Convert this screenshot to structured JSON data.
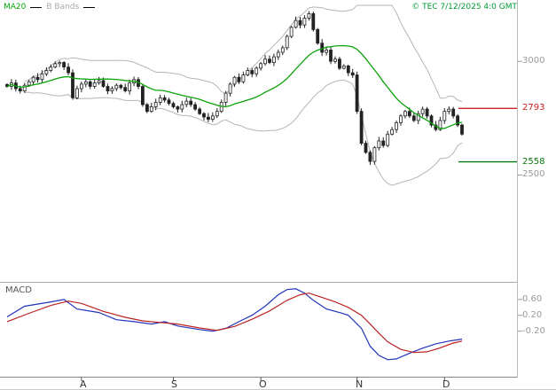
{
  "header": {
    "ma20_label": "MA20",
    "bbands_label": "B Bands",
    "copyright": "© TEC 7/12/2025 4:0 GMT"
  },
  "price_axis": {
    "ticks": [
      {
        "label": "3000",
        "value": 3000
      },
      {
        "label": "2500",
        "value": 2500
      }
    ],
    "levels": [
      {
        "name": "resistance",
        "label": "2793",
        "value": 2793
      },
      {
        "name": "support",
        "label": "2558",
        "value": 2558
      }
    ]
  },
  "macd_panel": {
    "label": "MACD",
    "ticks": [
      {
        "label": "0.60",
        "value": 0.6
      },
      {
        "label": "0.20",
        "value": 0.2
      },
      {
        "label": "-0.20",
        "value": -0.2
      }
    ]
  },
  "x_axis": {
    "months": [
      {
        "label": "A",
        "day": 17
      },
      {
        "label": "S",
        "day": 38
      },
      {
        "label": "O",
        "day": 58
      },
      {
        "label": "N",
        "day": 80
      },
      {
        "label": "D",
        "day": 100
      }
    ]
  },
  "chart_data": {
    "type": "candlestick",
    "panels": [
      "price",
      "macd"
    ],
    "price": {
      "ylim": [
        2030,
        3270
      ],
      "ma_period": 20,
      "bollinger_mult": 2,
      "closes": [
        2890,
        2905,
        2880,
        2870,
        2895,
        2910,
        2930,
        2920,
        2945,
        2960,
        2975,
        2990,
        2995,
        2975,
        2950,
        2840,
        2880,
        2900,
        2910,
        2890,
        2905,
        2915,
        2890,
        2870,
        2880,
        2895,
        2885,
        2870,
        2905,
        2920,
        2890,
        2810,
        2780,
        2800,
        2820,
        2840,
        2830,
        2815,
        2800,
        2790,
        2810,
        2825,
        2810,
        2790,
        2770,
        2755,
        2745,
        2760,
        2780,
        2820,
        2860,
        2900,
        2930,
        2910,
        2940,
        2960,
        2945,
        2970,
        2990,
        3010,
        2995,
        3020,
        3040,
        3060,
        3110,
        3150,
        3180,
        3160,
        3190,
        3210,
        3140,
        3080,
        3040,
        3050,
        3000,
        3010,
        2970,
        2980,
        2950,
        2940,
        2780,
        2640,
        2600,
        2560,
        2620,
        2650,
        2630,
        2680,
        2700,
        2730,
        2760,
        2780,
        2760,
        2740,
        2770,
        2790,
        2760,
        2720,
        2700,
        2740,
        2780,
        2790,
        2760,
        2720,
        2680
      ]
    },
    "macd": {
      "ylim": [
        -1.35,
        1.0
      ],
      "macd_points": [
        [
          0,
          0.16
        ],
        [
          4,
          0.43
        ],
        [
          10,
          0.54
        ],
        [
          13,
          0.6
        ],
        [
          16,
          0.36
        ],
        [
          21,
          0.27
        ],
        [
          25,
          0.09
        ],
        [
          29,
          0.04
        ],
        [
          33,
          -0.02
        ],
        [
          36,
          0.04
        ],
        [
          39,
          -0.07
        ],
        [
          44,
          -0.16
        ],
        [
          47,
          -0.2
        ],
        [
          50,
          -0.13
        ],
        [
          53,
          0.04
        ],
        [
          56,
          0.2
        ],
        [
          59,
          0.43
        ],
        [
          62,
          0.72
        ],
        [
          64,
          0.85
        ],
        [
          66,
          0.87
        ],
        [
          68,
          0.76
        ],
        [
          70,
          0.58
        ],
        [
          73,
          0.36
        ],
        [
          76,
          0.27
        ],
        [
          78,
          0.2
        ],
        [
          81,
          -0.13
        ],
        [
          83,
          -0.58
        ],
        [
          85,
          -0.81
        ],
        [
          87,
          -0.92
        ],
        [
          89,
          -0.9
        ],
        [
          92,
          -0.76
        ],
        [
          95,
          -0.63
        ],
        [
          98,
          -0.52
        ],
        [
          101,
          -0.45
        ],
        [
          104,
          -0.4
        ]
      ],
      "signal_points": [
        [
          0,
          0.04
        ],
        [
          5,
          0.25
        ],
        [
          10,
          0.45
        ],
        [
          14,
          0.56
        ],
        [
          17,
          0.5
        ],
        [
          22,
          0.3
        ],
        [
          27,
          0.15
        ],
        [
          31,
          0.06
        ],
        [
          35,
          0.02
        ],
        [
          39,
          -0.02
        ],
        [
          44,
          -0.12
        ],
        [
          48,
          -0.18
        ],
        [
          52,
          -0.08
        ],
        [
          56,
          0.1
        ],
        [
          60,
          0.31
        ],
        [
          64,
          0.58
        ],
        [
          67,
          0.72
        ],
        [
          69,
          0.76
        ],
        [
          72,
          0.65
        ],
        [
          75,
          0.54
        ],
        [
          78,
          0.4
        ],
        [
          81,
          0.2
        ],
        [
          83,
          -0.02
        ],
        [
          85,
          -0.25
        ],
        [
          87,
          -0.47
        ],
        [
          90,
          -0.66
        ],
        [
          93,
          -0.74
        ],
        [
          96,
          -0.72
        ],
        [
          99,
          -0.62
        ],
        [
          102,
          -0.5
        ],
        [
          104,
          -0.45
        ]
      ]
    },
    "colors": {
      "ma20": "#0aa30a",
      "bollinger": "#b5b5b5",
      "candle": "#222222",
      "macd_line": "#2233bb",
      "signal_line": "#bb2222",
      "resistance": "#cc2222",
      "support": "#0a7a0a",
      "axis_text": "#999999",
      "copyright": "#009933"
    }
  }
}
